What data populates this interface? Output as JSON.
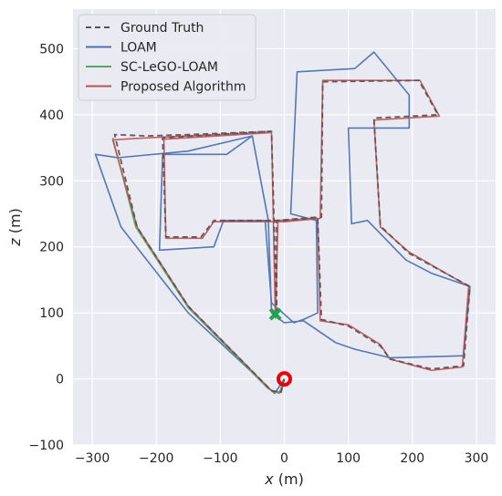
{
  "chart_data": {
    "type": "line",
    "title": "",
    "xlabel_var": "x",
    "xlabel_unit": " (m)",
    "ylabel_var": "z",
    "ylabel_unit": " (m)",
    "xlim": [
      -330,
      330
    ],
    "ylim": [
      -100,
      560
    ],
    "xticks": [
      -300,
      -200,
      -100,
      0,
      100,
      200,
      300
    ],
    "yticks": [
      -100,
      0,
      100,
      200,
      300,
      400,
      500
    ],
    "grid": true,
    "legend_position": "top-left",
    "background": "#eaeaf2",
    "series": [
      {
        "name": "Ground Truth",
        "color": "#555555",
        "dash": "6,4",
        "points": [
          [
            0,
            0
          ],
          [
            -5,
            -20
          ],
          [
            -20,
            -18
          ],
          [
            -150,
            110
          ],
          [
            -230,
            230
          ],
          [
            -265,
            370
          ],
          [
            -215,
            368
          ],
          [
            -150,
            370
          ],
          [
            -20,
            375
          ],
          [
            -12,
            95
          ],
          [
            -12,
            240
          ],
          [
            52,
            245
          ],
          [
            58,
            90
          ],
          [
            100,
            80
          ],
          [
            150,
            50
          ],
          [
            165,
            30
          ],
          [
            230,
            15
          ],
          [
            280,
            20
          ],
          [
            290,
            140
          ],
          [
            195,
            190
          ],
          [
            150,
            232
          ],
          [
            140,
            395
          ],
          [
            240,
            400
          ],
          [
            210,
            452
          ],
          [
            60,
            450
          ],
          [
            58,
            245
          ],
          [
            0,
            240
          ],
          [
            -110,
            240
          ],
          [
            -130,
            215
          ],
          [
            -185,
            215
          ],
          [
            -190,
            365
          ],
          [
            -20,
            375
          ]
        ]
      },
      {
        "name": "LOAM",
        "color": "#4c72b0",
        "dash": "",
        "points": [
          [
            0,
            0
          ],
          [
            -15,
            -22
          ],
          [
            -150,
            100
          ],
          [
            -255,
            230
          ],
          [
            -295,
            340
          ],
          [
            -260,
            335
          ],
          [
            -150,
            345
          ],
          [
            -50,
            368
          ],
          [
            -25,
            240
          ],
          [
            -20,
            100
          ],
          [
            0,
            85
          ],
          [
            30,
            88
          ],
          [
            80,
            55
          ],
          [
            110,
            45
          ],
          [
            165,
            32
          ],
          [
            280,
            35
          ],
          [
            290,
            140
          ],
          [
            230,
            160
          ],
          [
            190,
            180
          ],
          [
            130,
            240
          ],
          [
            105,
            235
          ],
          [
            100,
            380
          ],
          [
            195,
            380
          ],
          [
            195,
            430
          ],
          [
            140,
            495
          ],
          [
            110,
            470
          ],
          [
            20,
            465
          ],
          [
            10,
            250
          ],
          [
            30,
            245
          ],
          [
            50,
            240
          ],
          [
            52,
            100
          ],
          [
            30,
            90
          ],
          [
            15,
            85
          ],
          [
            -20,
            115
          ],
          [
            -30,
            240
          ],
          [
            -95,
            240
          ],
          [
            -110,
            200
          ],
          [
            -195,
            195
          ],
          [
            -190,
            340
          ],
          [
            -90,
            340
          ],
          [
            -50,
            368
          ]
        ]
      },
      {
        "name": "SC-LeGO-LOAM",
        "color": "#55a868",
        "dash": "",
        "points": [
          [
            0,
            0
          ],
          [
            -8,
            -22
          ],
          [
            -25,
            -15
          ],
          [
            -150,
            108
          ],
          [
            -232,
            230
          ],
          [
            -268,
            365
          ]
        ]
      },
      {
        "name": "Proposed Algorithm",
        "color": "#c44e52",
        "dash": "",
        "points": [
          [
            0,
            0
          ],
          [
            -5,
            -20
          ],
          [
            -20,
            -18
          ],
          [
            -150,
            110
          ],
          [
            -230,
            230
          ],
          [
            -268,
            362
          ],
          [
            -215,
            365
          ],
          [
            -150,
            368
          ],
          [
            -20,
            373
          ],
          [
            -14,
            92
          ],
          [
            -10,
            240
          ],
          [
            52,
            243
          ],
          [
            56,
            88
          ],
          [
            100,
            82
          ],
          [
            150,
            52
          ],
          [
            165,
            30
          ],
          [
            230,
            13
          ],
          [
            278,
            18
          ],
          [
            288,
            140
          ],
          [
            195,
            192
          ],
          [
            150,
            230
          ],
          [
            140,
            392
          ],
          [
            242,
            398
          ],
          [
            212,
            452
          ],
          [
            60,
            452
          ],
          [
            56,
            243
          ],
          [
            0,
            238
          ],
          [
            -110,
            238
          ],
          [
            -128,
            213
          ],
          [
            -185,
            213
          ],
          [
            -188,
            363
          ],
          [
            -20,
            373
          ]
        ]
      }
    ],
    "markers": [
      {
        "name": "start",
        "x": 0,
        "y": 0,
        "shape": "ring",
        "color": "#e8000b"
      },
      {
        "name": "end",
        "x": -14,
        "y": 98,
        "shape": "x",
        "color": "#1ca54e"
      }
    ]
  }
}
